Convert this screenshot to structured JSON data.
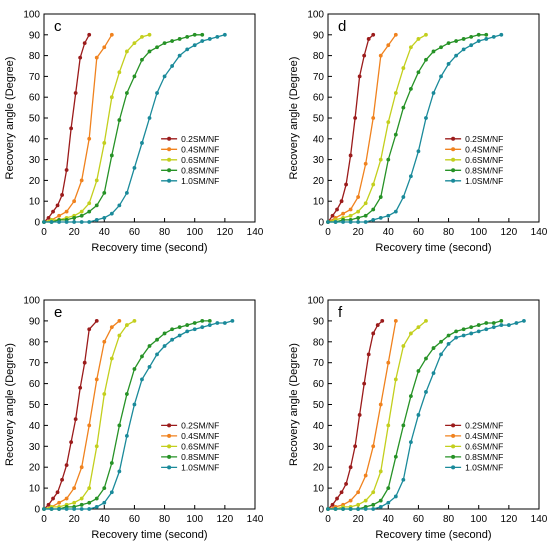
{
  "colors": {
    "0.2SM/NF": "#9b1b1b",
    "0.4SM/NF": "#f0821e",
    "0.6SM/NF": "#c3cf1d",
    "0.8SM/NF": "#269226",
    "1.0SM/NF": "#1a8a9a"
  },
  "chart_data": [
    {
      "type": "line",
      "panel_label": "c",
      "xlabel": "Recovery time (second)",
      "ylabel": "Recovery angle (Degree)",
      "xlim": [
        0,
        140
      ],
      "ylim": [
        0,
        100
      ],
      "xticks": [
        "0",
        "20",
        "40",
        "60",
        "80",
        "100",
        "120",
        "140"
      ],
      "yticks": [
        "0",
        "10",
        "20",
        "30",
        "40",
        "50",
        "60",
        "70",
        "80",
        "90",
        "100"
      ],
      "grid": false,
      "legend_position": "lower-right",
      "series": [
        {
          "name": "0.2SM/NF",
          "x": [
            0,
            3,
            6,
            9,
            12,
            15,
            18,
            21,
            24,
            27,
            30
          ],
          "y": [
            0,
            2,
            5,
            8,
            13,
            25,
            45,
            62,
            79,
            86,
            90
          ]
        },
        {
          "name": "0.4SM/NF",
          "x": [
            0,
            5,
            10,
            15,
            20,
            25,
            30,
            35,
            40,
            45
          ],
          "y": [
            0,
            1,
            3,
            5,
            10,
            20,
            40,
            79,
            84,
            90
          ]
        },
        {
          "name": "0.6SM/NF",
          "x": [
            0,
            5,
            10,
            15,
            20,
            25,
            30,
            35,
            40,
            45,
            50,
            55,
            60,
            65,
            70
          ],
          "y": [
            0,
            1,
            1,
            2,
            3,
            5,
            9,
            20,
            38,
            60,
            72,
            82,
            86,
            89,
            90
          ]
        },
        {
          "name": "0.8SM/NF",
          "x": [
            0,
            5,
            10,
            15,
            20,
            25,
            30,
            35,
            40,
            45,
            50,
            55,
            60,
            65,
            70,
            75,
            80,
            85,
            90,
            95,
            100,
            105
          ],
          "y": [
            0,
            0,
            1,
            1,
            2,
            3,
            5,
            8,
            14,
            32,
            49,
            62,
            70,
            78,
            82,
            84,
            86,
            87,
            88,
            89,
            90,
            90
          ]
        },
        {
          "name": "1.0SM/NF",
          "x": [
            0,
            5,
            10,
            15,
            20,
            25,
            30,
            35,
            40,
            45,
            50,
            55,
            60,
            65,
            70,
            75,
            80,
            85,
            90,
            95,
            100,
            105,
            110,
            115,
            120
          ],
          "y": [
            0,
            0,
            0,
            0,
            0,
            0,
            0,
            1,
            2,
            4,
            8,
            14,
            26,
            38,
            50,
            62,
            70,
            75,
            80,
            83,
            85,
            87,
            88,
            89,
            90
          ]
        }
      ]
    },
    {
      "type": "line",
      "panel_label": "d",
      "xlabel": "Recovery time (second)",
      "ylabel": "Recovery angle (Degree)",
      "xlim": [
        0,
        140
      ],
      "ylim": [
        0,
        100
      ],
      "xticks": [
        "0",
        "20",
        "40",
        "60",
        "80",
        "100",
        "120",
        "140"
      ],
      "yticks": [
        "0",
        "10",
        "20",
        "30",
        "40",
        "50",
        "60",
        "70",
        "80",
        "90",
        "100"
      ],
      "grid": false,
      "legend_position": "lower-right",
      "series": [
        {
          "name": "0.2SM/NF",
          "x": [
            0,
            3,
            6,
            9,
            12,
            15,
            18,
            21,
            24,
            27,
            30
          ],
          "y": [
            0,
            3,
            6,
            10,
            18,
            32,
            50,
            70,
            80,
            88,
            90
          ]
        },
        {
          "name": "0.4SM/NF",
          "x": [
            0,
            5,
            10,
            15,
            20,
            25,
            30,
            35,
            40,
            45
          ],
          "y": [
            0,
            2,
            4,
            6,
            12,
            28,
            50,
            80,
            85,
            90
          ]
        },
        {
          "name": "0.6SM/NF",
          "x": [
            0,
            5,
            10,
            15,
            20,
            25,
            30,
            35,
            40,
            45,
            50,
            55,
            60,
            65
          ],
          "y": [
            0,
            1,
            2,
            3,
            5,
            9,
            18,
            30,
            48,
            62,
            74,
            84,
            88,
            90
          ]
        },
        {
          "name": "0.8SM/NF",
          "x": [
            0,
            5,
            10,
            15,
            20,
            25,
            30,
            35,
            40,
            45,
            50,
            55,
            60,
            65,
            70,
            75,
            80,
            85,
            90,
            95,
            100,
            105
          ],
          "y": [
            0,
            0,
            1,
            1,
            2,
            3,
            6,
            12,
            30,
            42,
            55,
            64,
            72,
            78,
            82,
            84,
            86,
            87,
            88,
            89,
            90,
            90
          ]
        },
        {
          "name": "1.0SM/NF",
          "x": [
            0,
            5,
            10,
            15,
            20,
            25,
            30,
            35,
            40,
            45,
            50,
            55,
            60,
            65,
            70,
            75,
            80,
            85,
            90,
            95,
            100,
            105,
            110,
            115
          ],
          "y": [
            0,
            0,
            0,
            0,
            0,
            0,
            1,
            2,
            3,
            5,
            12,
            22,
            34,
            50,
            62,
            70,
            76,
            80,
            83,
            85,
            87,
            88,
            89,
            90
          ]
        }
      ]
    },
    {
      "type": "line",
      "panel_label": "e",
      "xlabel": "Recovery time (second)",
      "ylabel": "Recovery angle (Degree)",
      "xlim": [
        0,
        140
      ],
      "ylim": [
        0,
        100
      ],
      "xticks": [
        "0",
        "20",
        "40",
        "60",
        "80",
        "100",
        "120",
        "140"
      ],
      "yticks": [
        "0",
        "10",
        "20",
        "30",
        "40",
        "50",
        "60",
        "70",
        "80",
        "90",
        "100"
      ],
      "grid": false,
      "legend_position": "lower-right",
      "series": [
        {
          "name": "0.2SM/NF",
          "x": [
            0,
            3,
            6,
            9,
            12,
            15,
            18,
            21,
            24,
            27,
            30,
            35
          ],
          "y": [
            0,
            2,
            5,
            8,
            14,
            21,
            32,
            43,
            58,
            70,
            86,
            90
          ]
        },
        {
          "name": "0.4SM/NF",
          "x": [
            0,
            5,
            10,
            15,
            20,
            25,
            30,
            35,
            40,
            45,
            50
          ],
          "y": [
            0,
            1,
            3,
            5,
            10,
            20,
            40,
            62,
            80,
            87,
            90
          ]
        },
        {
          "name": "0.6SM/NF",
          "x": [
            0,
            5,
            10,
            15,
            20,
            25,
            30,
            35,
            40,
            45,
            50,
            55,
            60
          ],
          "y": [
            0,
            1,
            1,
            2,
            3,
            5,
            10,
            30,
            55,
            72,
            83,
            88,
            90
          ]
        },
        {
          "name": "0.8SM/NF",
          "x": [
            0,
            5,
            10,
            15,
            20,
            25,
            30,
            35,
            40,
            45,
            50,
            55,
            60,
            65,
            70,
            75,
            80,
            85,
            90,
            95,
            100,
            105,
            110
          ],
          "y": [
            0,
            0,
            0,
            1,
            1,
            2,
            3,
            5,
            10,
            22,
            40,
            55,
            67,
            73,
            78,
            81,
            84,
            86,
            87,
            88,
            89,
            90,
            90
          ]
        },
        {
          "name": "1.0SM/NF",
          "x": [
            0,
            5,
            10,
            15,
            20,
            25,
            30,
            35,
            40,
            45,
            50,
            55,
            60,
            65,
            70,
            75,
            80,
            85,
            90,
            95,
            100,
            105,
            110,
            115,
            120,
            125
          ],
          "y": [
            0,
            0,
            0,
            0,
            0,
            0,
            0,
            1,
            3,
            8,
            18,
            35,
            50,
            62,
            68,
            74,
            78,
            81,
            83,
            85,
            86,
            87,
            88,
            89,
            89,
            90
          ]
        }
      ]
    },
    {
      "type": "line",
      "panel_label": "f",
      "xlabel": "Recovery time (second)",
      "ylabel": "Recovery angle (Degree)",
      "xlim": [
        0,
        140
      ],
      "ylim": [
        0,
        100
      ],
      "xticks": [
        "0",
        "20",
        "40",
        "60",
        "80",
        "100",
        "120",
        "140"
      ],
      "yticks": [
        "0",
        "10",
        "20",
        "30",
        "40",
        "50",
        "60",
        "70",
        "80",
        "90",
        "100"
      ],
      "grid": false,
      "legend_position": "lower-right",
      "series": [
        {
          "name": "0.2SM/NF",
          "x": [
            0,
            3,
            6,
            9,
            12,
            15,
            18,
            21,
            24,
            27,
            30,
            33,
            36
          ],
          "y": [
            0,
            2,
            5,
            8,
            12,
            20,
            30,
            45,
            60,
            74,
            84,
            88,
            90
          ]
        },
        {
          "name": "0.4SM/NF",
          "x": [
            0,
            5,
            10,
            15,
            20,
            25,
            30,
            35,
            40,
            45
          ],
          "y": [
            0,
            1,
            2,
            4,
            8,
            16,
            30,
            50,
            70,
            90
          ]
        },
        {
          "name": "0.6SM/NF",
          "x": [
            0,
            5,
            10,
            15,
            20,
            25,
            30,
            35,
            40,
            45,
            50,
            55,
            60,
            65
          ],
          "y": [
            0,
            0,
            1,
            1,
            2,
            4,
            8,
            18,
            40,
            62,
            78,
            84,
            87,
            90
          ]
        },
        {
          "name": "0.8SM/NF",
          "x": [
            0,
            5,
            10,
            15,
            20,
            25,
            30,
            35,
            40,
            45,
            50,
            55,
            60,
            65,
            70,
            75,
            80,
            85,
            90,
            95,
            100,
            105,
            110,
            115
          ],
          "y": [
            0,
            0,
            0,
            0,
            0,
            1,
            2,
            4,
            10,
            25,
            40,
            54,
            66,
            72,
            77,
            80,
            83,
            85,
            86,
            87,
            88,
            89,
            89,
            90
          ]
        },
        {
          "name": "1.0SM/NF",
          "x": [
            0,
            5,
            10,
            15,
            20,
            25,
            30,
            35,
            40,
            45,
            50,
            55,
            60,
            65,
            70,
            75,
            80,
            85,
            90,
            95,
            100,
            105,
            110,
            115,
            120,
            125,
            130
          ],
          "y": [
            0,
            0,
            0,
            0,
            0,
            0,
            0,
            1,
            3,
            6,
            14,
            32,
            45,
            56,
            65,
            74,
            79,
            82,
            83,
            84,
            85,
            86,
            87,
            88,
            88,
            89,
            90
          ]
        }
      ]
    }
  ]
}
